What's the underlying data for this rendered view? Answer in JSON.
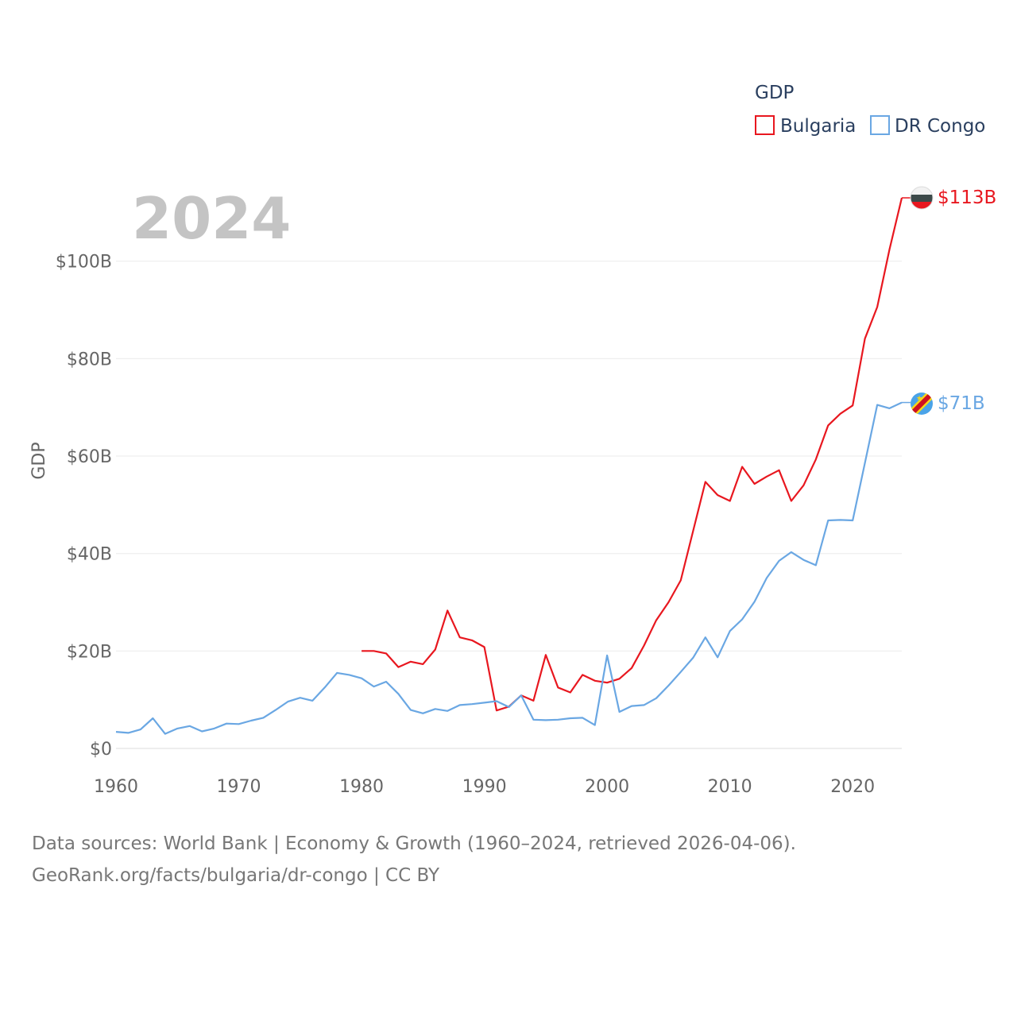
{
  "chart_data": {
    "type": "line",
    "year_label": "2024",
    "ylabel": "GDP",
    "legend": {
      "title": "GDP",
      "placement": "top-right"
    },
    "xlim": [
      1960,
      2024
    ],
    "ylim": [
      0,
      113
    ],
    "x_ticks": [
      "1960",
      "1970",
      "1980",
      "1990",
      "2000",
      "2010",
      "2020"
    ],
    "y_ticks": [
      {
        "value": 0,
        "label": "$0"
      },
      {
        "value": 20,
        "label": "$20B"
      },
      {
        "value": 40,
        "label": "$40B"
      },
      {
        "value": 60,
        "label": "$60B"
      },
      {
        "value": 80,
        "label": "$80B"
      },
      {
        "value": 100,
        "label": "$100B"
      }
    ],
    "series": [
      {
        "name": "Bulgaria",
        "color": "#e8171f",
        "end_label": "$113B",
        "flag": "bulgaria-flag-icon",
        "x": [
          1980,
          1981,
          1982,
          1983,
          1984,
          1985,
          1986,
          1987,
          1988,
          1989,
          1990,
          1991,
          1992,
          1993,
          1994,
          1995,
          1996,
          1997,
          1998,
          1999,
          2000,
          2001,
          2002,
          2003,
          2004,
          2005,
          2006,
          2007,
          2008,
          2009,
          2010,
          2011,
          2012,
          2013,
          2014,
          2015,
          2016,
          2017,
          2018,
          2019,
          2020,
          2021,
          2022,
          2023,
          2024
        ],
        "values": [
          20.0,
          20.0,
          19.5,
          16.7,
          17.8,
          17.3,
          20.3,
          28.3,
          22.8,
          22.2,
          20.8,
          7.8,
          8.6,
          10.9,
          9.8,
          19.2,
          12.5,
          11.5,
          15.1,
          13.9,
          13.5,
          14.3,
          16.5,
          21.1,
          26.3,
          30.0,
          34.5,
          44.6,
          54.7,
          52.0,
          50.8,
          57.8,
          54.3,
          55.8,
          57.1,
          50.8,
          54.0,
          59.3,
          66.3,
          68.7,
          70.4,
          84.1,
          90.6,
          102.4,
          113.0
        ]
      },
      {
        "name": "DR Congo",
        "color": "#6aa7e3",
        "end_label": "$71B",
        "flag": "dr-congo-flag-icon",
        "x": [
          1960,
          1961,
          1962,
          1963,
          1964,
          1965,
          1966,
          1967,
          1968,
          1969,
          1970,
          1971,
          1972,
          1973,
          1974,
          1975,
          1976,
          1977,
          1978,
          1979,
          1980,
          1981,
          1982,
          1983,
          1984,
          1985,
          1986,
          1987,
          1988,
          1989,
          1990,
          1991,
          1992,
          1993,
          1994,
          1995,
          1996,
          1997,
          1998,
          1999,
          2000,
          2001,
          2002,
          2003,
          2004,
          2005,
          2006,
          2007,
          2008,
          2009,
          2010,
          2011,
          2012,
          2013,
          2014,
          2015,
          2016,
          2017,
          2018,
          2019,
          2020,
          2021,
          2022,
          2023,
          2024
        ],
        "values": [
          3.4,
          3.2,
          3.9,
          6.2,
          3.0,
          4.1,
          4.6,
          3.5,
          4.1,
          5.1,
          5.0,
          5.7,
          6.3,
          7.9,
          9.6,
          10.4,
          9.8,
          12.5,
          15.5,
          15.1,
          14.4,
          12.7,
          13.7,
          11.2,
          7.9,
          7.2,
          8.1,
          7.7,
          8.9,
          9.1,
          9.4,
          9.7,
          8.5,
          10.9,
          5.9,
          5.8,
          5.9,
          6.2,
          6.3,
          4.8,
          19.1,
          7.5,
          8.7,
          8.9,
          10.3,
          12.9,
          15.7,
          18.6,
          22.8,
          18.7,
          24.1,
          26.5,
          30.1,
          35.0,
          38.5,
          40.3,
          38.7,
          37.6,
          46.8,
          46.9,
          46.8,
          58.6,
          70.5,
          69.8,
          71.0
        ]
      }
    ]
  },
  "source": {
    "line1": "Data sources: World Bank | Economy & Growth (1960–2024, retrieved 2026-04-06).",
    "line2": "GeoRank.org/facts/bulgaria/dr-congo | CC BY"
  }
}
